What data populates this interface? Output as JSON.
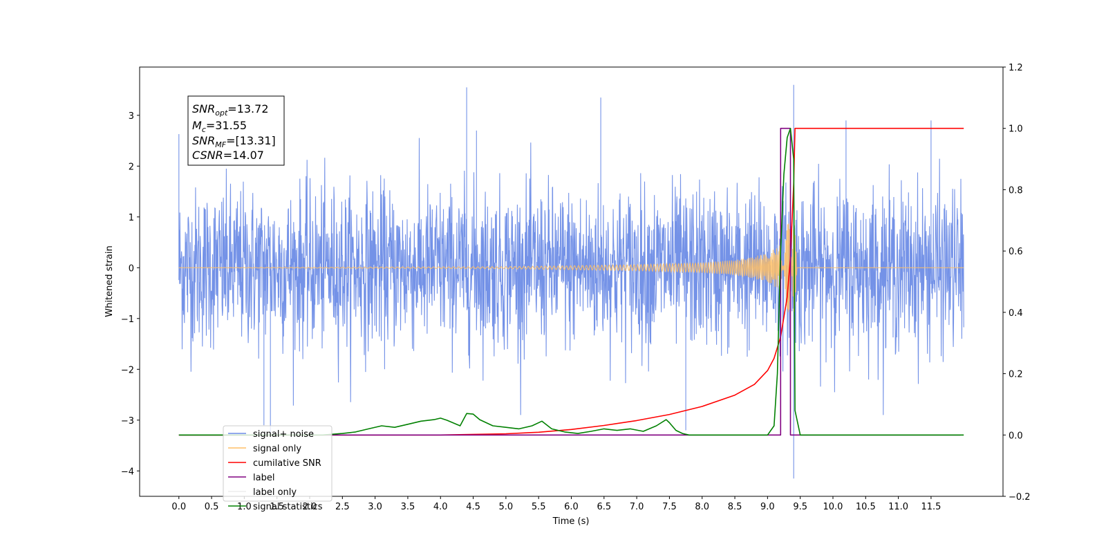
{
  "chart_data": {
    "type": "line",
    "title": "",
    "xlabel": "Time (s)",
    "ylabel": "Whitened strain",
    "y2label": "",
    "xlim": [
      -0.6,
      12.6
    ],
    "ylim": [
      -4.5,
      3.95
    ],
    "y2lim": [
      -0.2,
      1.2
    ],
    "xticks": [
      "0.0",
      "0.5",
      "1.0",
      "1.5",
      "2.0",
      "2.5",
      "3.0",
      "3.5",
      "4.0",
      "4.5",
      "5.0",
      "5.5",
      "6.0",
      "6.5",
      "7.0",
      "7.5",
      "8.0",
      "8.5",
      "9.0",
      "9.5",
      "10.0",
      "10.5",
      "11.0",
      "11.5"
    ],
    "yticks": [
      -4,
      -3,
      -2,
      -1,
      0,
      1,
      2,
      3
    ],
    "ytick_labels": [
      "−4",
      "−3",
      "−2",
      "−1",
      "0",
      "1",
      "2",
      "3"
    ],
    "y2ticks": [
      -0.2,
      0.0,
      0.2,
      0.4,
      0.6,
      0.8,
      1.0,
      1.2
    ],
    "y2tick_labels": [
      "−0.2",
      "0.0",
      "0.2",
      "0.4",
      "0.6",
      "0.8",
      "1.0",
      "1.2"
    ],
    "grid": false,
    "legend_position": "bottom-left",
    "annotation": {
      "snr_opt": "=13.72",
      "mc": "=31.55",
      "snr_mf": "=[13.31]",
      "csnr": "=14.07"
    },
    "series": [
      {
        "name": "signal+ noise",
        "axis": "left",
        "color": "#6d8ce6",
        "kind": "noise",
        "x_range": [
          0.0,
          12.0
        ],
        "sigma": 0.78,
        "notable_peaks": [
          [
            0.0,
            2.63
          ],
          [
            4.4,
            3.55
          ],
          [
            6.45,
            3.35
          ],
          [
            9.4,
            3.6
          ],
          [
            9.4,
            -4.15
          ],
          [
            1.3,
            -3.1
          ],
          [
            1.4,
            -3.3
          ],
          [
            7.75,
            -3.2
          ],
          [
            10.2,
            2.9
          ],
          [
            11.5,
            2.9
          ],
          [
            4.55,
            2.7
          ]
        ]
      },
      {
        "name": "signal only",
        "axis": "left",
        "color": "#ffbf66",
        "kind": "chirp",
        "x": [
          0.0,
          5.0,
          6.0,
          7.0,
          8.0,
          8.5,
          9.0,
          9.2,
          9.4,
          9.45
        ],
        "amplitude": [
          0.0,
          0.02,
          0.04,
          0.06,
          0.1,
          0.15,
          0.28,
          0.45,
          1.2,
          0.0
        ]
      },
      {
        "name": "cumilative SNR",
        "axis": "right",
        "color": "#ff0000",
        "x": [
          0.0,
          4.0,
          5.0,
          5.5,
          6.0,
          6.5,
          7.0,
          7.5,
          8.0,
          8.5,
          8.8,
          9.0,
          9.1,
          9.2,
          9.3,
          9.35,
          9.4,
          9.42,
          9.45,
          11.0,
          12.0
        ],
        "y": [
          0.0,
          0.0,
          0.004,
          0.009,
          0.018,
          0.031,
          0.047,
          0.067,
          0.093,
          0.13,
          0.165,
          0.21,
          0.25,
          0.32,
          0.45,
          0.58,
          0.82,
          1.0,
          1.0,
          1.0,
          1.0
        ]
      },
      {
        "name": "label",
        "axis": "right",
        "color": "#800080",
        "x": [
          0.0,
          9.2,
          9.2,
          9.35,
          9.35,
          11.95
        ],
        "y": [
          0.0,
          0.0,
          1.0,
          1.0,
          0.0,
          0.0
        ]
      },
      {
        "name": "label only",
        "axis": "right",
        "color": "#eeeeee",
        "hidden": true,
        "x": [],
        "y": []
      },
      {
        "name": "signal statistics",
        "axis": "right",
        "color": "#008000",
        "x": [
          0.0,
          2.2,
          2.5,
          2.7,
          2.9,
          3.1,
          3.3,
          3.5,
          3.7,
          3.9,
          4.0,
          4.1,
          4.3,
          4.4,
          4.5,
          4.6,
          4.8,
          5.0,
          5.2,
          5.4,
          5.55,
          5.7,
          5.9,
          6.1,
          6.3,
          6.5,
          6.7,
          6.9,
          7.1,
          7.3,
          7.45,
          7.5,
          7.6,
          7.7,
          7.8,
          9.0,
          9.1,
          9.15,
          9.2,
          9.25,
          9.3,
          9.35,
          9.4,
          9.42,
          9.5,
          12.0
        ],
        "y": [
          0.0,
          0.0,
          0.005,
          0.01,
          0.02,
          0.03,
          0.025,
          0.035,
          0.045,
          0.05,
          0.055,
          0.048,
          0.03,
          0.07,
          0.068,
          0.05,
          0.03,
          0.025,
          0.02,
          0.03,
          0.045,
          0.02,
          0.01,
          0.005,
          0.012,
          0.02,
          0.015,
          0.02,
          0.012,
          0.03,
          0.05,
          0.04,
          0.015,
          0.005,
          0.0,
          0.0,
          0.03,
          0.2,
          0.6,
          0.85,
          0.97,
          1.0,
          0.9,
          0.08,
          0.0,
          0.0
        ]
      }
    ]
  }
}
